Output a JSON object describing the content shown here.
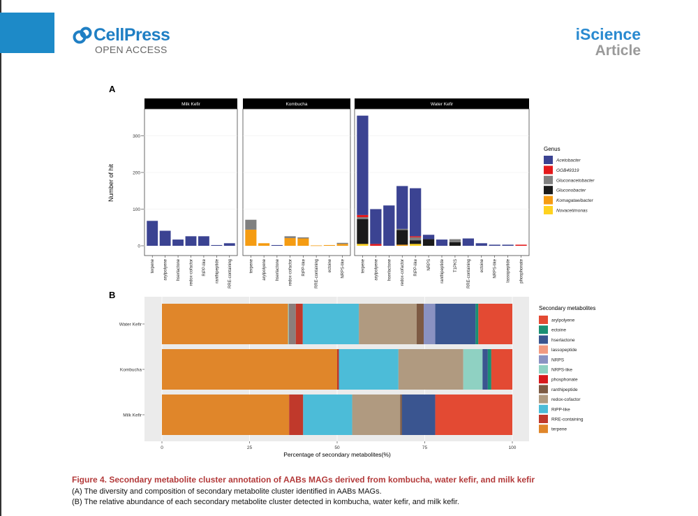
{
  "header": {
    "publisher": "CellPress",
    "access": "OPEN ACCESS",
    "journal": "iScience",
    "article_type": "Article"
  },
  "colors": {
    "publisher_blue": "#1f7fc4",
    "caption_red": "#b33a3a"
  },
  "caption": {
    "title": "Figure 4. Secondary metabolite cluster annotation of AABs MAGs derived from kombucha, water kefir, and milk kefir",
    "line_a": "(A) The diversity and composition of secondary metabolite cluster identified in AABs MAGs.",
    "line_b": "(B) The relative abundance of each secondary metabolite cluster detected in kombucha, water kefir, and milk kefir."
  },
  "chart_data": [
    {
      "panel": "A",
      "type": "bar",
      "stacked": true,
      "ylabel": "Number of hit",
      "ylim": [
        0,
        360
      ],
      "yticks": [
        0,
        100,
        200,
        300
      ],
      "legend_title": "Genus",
      "genus_colors": {
        "Acetobacter": "#3b4392",
        "GGB49319": "#e41a1c",
        "Gluconacetobacter": "#808080",
        "Gluconobacter": "#1a1a1a",
        "Komagataeibacter": "#f59c12",
        "Novacetimonas": "#ffd21f"
      },
      "facets": [
        {
          "name": "Milk Kefir",
          "bars": [
            {
              "category": "terpene",
              "stack": {
                "Acetobacter": 68
              }
            },
            {
              "category": "arylpolyene",
              "stack": {
                "Acetobacter": 41
              }
            },
            {
              "category": "hserlactone",
              "stack": {
                "Acetobacter": 17
              }
            },
            {
              "category": "redox-cofactor",
              "stack": {
                "Acetobacter": 26
              }
            },
            {
              "category": "RiPP-like",
              "stack": {
                "Acetobacter": 26
              }
            },
            {
              "category": "ranthipeptide",
              "stack": {
                "Acetobacter": 2
              }
            },
            {
              "category": "RRE-containing",
              "stack": {
                "Acetobacter": 7
              }
            }
          ]
        },
        {
          "name": "Kombucha",
          "bars": [
            {
              "category": "terpene",
              "stack": {
                "Komagataeibacter": 44,
                "Gluconacetobacter": 27
              }
            },
            {
              "category": "arylpolyene",
              "stack": {
                "Komagataeibacter": 7
              }
            },
            {
              "category": "hserlactone",
              "stack": {
                "Acetobacter": 2
              }
            },
            {
              "category": "redox-cofactor",
              "stack": {
                "Komagataeibacter": 21,
                "Gluconacetobacter": 5
              }
            },
            {
              "category": "RiPP-like",
              "stack": {
                "Komagataeibacter": 20,
                "Gluconacetobacter": 3
              }
            },
            {
              "category": "RRE-containing",
              "stack": {
                "Komagataeibacter": 1
              }
            },
            {
              "category": "ectoine",
              "stack": {
                "Komagataeibacter": 2
              }
            },
            {
              "category": "NRPS-like",
              "stack": {
                "Komagataeibacter": 5,
                "Gluconacetobacter": 3
              }
            }
          ]
        },
        {
          "name": "Water Kefir",
          "bars": [
            {
              "category": "terpene",
              "stack": {
                "Novacetimonas": 5,
                "Gluconobacter": 68,
                "Gluconacetobacter": 5,
                "GGB49319": 6,
                "Acetobacter": 271
              }
            },
            {
              "category": "arylpolyene",
              "stack": {
                "GGB49319": 5,
                "Acetobacter": 95
              }
            },
            {
              "category": "hserlactone",
              "stack": {
                "Acetobacter": 110
              }
            },
            {
              "category": "redox-cofactor",
              "stack": {
                "Komagataeibacter": 3,
                "Gluconobacter": 40,
                "Gluconacetobacter": 3,
                "Acetobacter": 117
              }
            },
            {
              "category": "RiPP-like",
              "stack": {
                "Novacetimonas": 5,
                "Gluconobacter": 10,
                "Gluconacetobacter": 8,
                "GGB49319": 3,
                "Acetobacter": 131
              }
            },
            {
              "category": "NRPS",
              "stack": {
                "Gluconobacter": 18,
                "Acetobacter": 12
              }
            },
            {
              "category": "ranthipeptide",
              "stack": {
                "Acetobacter": 17
              }
            },
            {
              "category": "T1PKS",
              "stack": {
                "Gluconobacter": 10,
                "Gluconacetobacter": 8
              }
            },
            {
              "category": "RRE-containing",
              "stack": {
                "Acetobacter": 20
              }
            },
            {
              "category": "ectoine",
              "stack": {
                "Acetobacter": 7
              }
            },
            {
              "category": "NRPS-like",
              "stack": {
                "Acetobacter": 3
              }
            },
            {
              "category": "lassopeptide",
              "stack": {
                "Acetobacter": 3
              }
            },
            {
              "category": "phosphonate",
              "stack": {
                "GGB49319": 3
              }
            }
          ]
        }
      ]
    },
    {
      "panel": "B",
      "type": "bar",
      "orientation": "horizontal",
      "stacked": true,
      "percent": true,
      "xlabel": "Percentage of secondary metabolites(%)",
      "xlim": [
        0,
        100
      ],
      "xticks": [
        0,
        25,
        50,
        75,
        100
      ],
      "legend_title": "Secondary metabolites",
      "metabolite_colors": {
        "arylpolyene": "#e34a33",
        "ectoine": "#1a8f73",
        "hserlactone": "#3a5590",
        "lassopeptide": "#f29a80",
        "NRPS": "#8a92c2",
        "NRPS-like": "#8fd1c2",
        "phosphonate": "#d7191c",
        "ranthipeptide": "#7d5a43",
        "redox-cofactor": "#b09a80",
        "RiPP-like": "#4cbcd8",
        "RRE-containing": "#c0392b",
        "terpene": "#e0862a"
      },
      "rows": [
        {
          "name": "Water Kefir",
          "segments": [
            {
              "metabolite": "terpene",
              "value": 36
            },
            {
              "metabolite": "NRPS-like",
              "value": 0.2
            },
            {
              "metabolite": "T1PKS",
              "value": 2,
              "color": "#8b7d7b"
            },
            {
              "metabolite": "RRE-containing",
              "value": 2
            },
            {
              "metabolite": "RiPP-like",
              "value": 16
            },
            {
              "metabolite": "redox-cofactor",
              "value": 16.5
            },
            {
              "metabolite": "ranthipeptide",
              "value": 2
            },
            {
              "metabolite": "NRPS",
              "value": 3.3
            },
            {
              "metabolite": "hserlactone",
              "value": 11.5
            },
            {
              "metabolite": "ectoine",
              "value": 0.8
            },
            {
              "metabolite": "arylpolyene",
              "value": 9.7
            }
          ]
        },
        {
          "name": "Kombucha",
          "segments": [
            {
              "metabolite": "terpene",
              "value": 50
            },
            {
              "metabolite": "RRE-containing",
              "value": 0.5
            },
            {
              "metabolite": "RiPP-like",
              "value": 17
            },
            {
              "metabolite": "redox-cofactor",
              "value": 18.5
            },
            {
              "metabolite": "NRPS-like",
              "value": 5.5
            },
            {
              "metabolite": "hserlactone",
              "value": 1.5
            },
            {
              "metabolite": "ectoine",
              "value": 1
            },
            {
              "metabolite": "arylpolyene",
              "value": 6
            }
          ]
        },
        {
          "name": "Milk Kefir",
          "segments": [
            {
              "metabolite": "terpene",
              "value": 36.3
            },
            {
              "metabolite": "RRE-containing",
              "value": 4
            },
            {
              "metabolite": "RiPP-like",
              "value": 14
            },
            {
              "metabolite": "redox-cofactor",
              "value": 13.7
            },
            {
              "metabolite": "ranthipeptide",
              "value": 0.5
            },
            {
              "metabolite": "hserlactone",
              "value": 9.5
            },
            {
              "metabolite": "arylpolyene",
              "value": 22
            }
          ]
        }
      ]
    }
  ]
}
